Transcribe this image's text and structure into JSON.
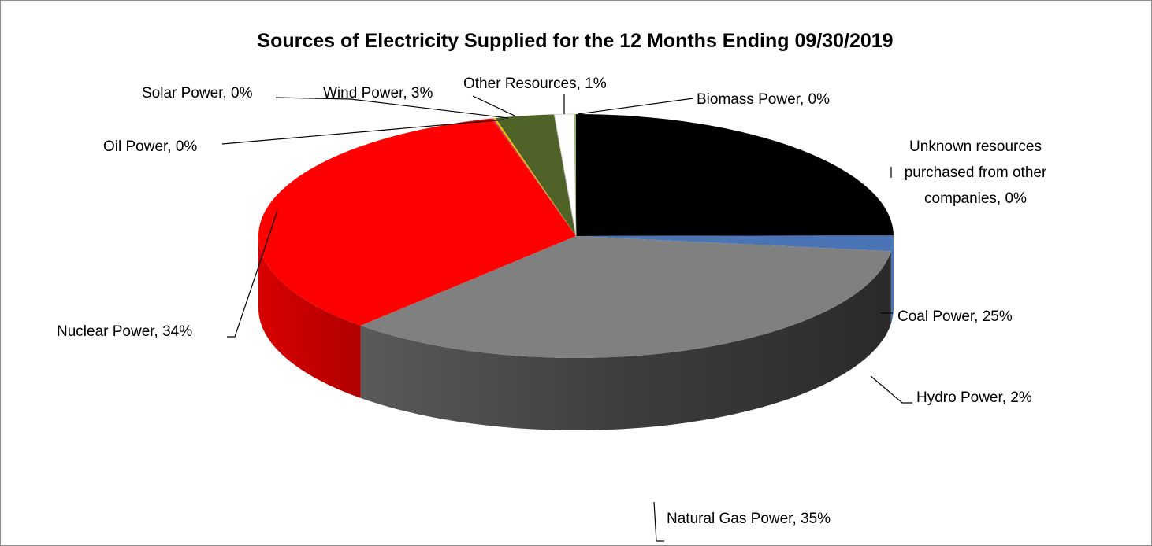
{
  "chart_data": {
    "type": "pie",
    "title": "Sources of Electricity Supplied for the 12 Months Ending 09/30/2019",
    "slices": [
      {
        "name": "Coal Power",
        "value": 25,
        "label": "Coal Power, 25%",
        "color": "#000000"
      },
      {
        "name": "Unknown resources purchased from other companies",
        "value": 0,
        "label_lines": [
          "Unknown resources",
          "purchased from other",
          "companies, 0%"
        ],
        "color": "#3a5f9a"
      },
      {
        "name": "Hydro Power",
        "value": 2,
        "label": "Hydro Power, 2%",
        "color": "#4a74b5"
      },
      {
        "name": "Natural Gas Power",
        "value": 35,
        "label": "Natural Gas Power, 35%",
        "color": "#808080"
      },
      {
        "name": "Nuclear Power",
        "value": 34,
        "label": "Nuclear Power, 34%",
        "color": "#ff0000"
      },
      {
        "name": "Oil Power",
        "value": 0,
        "label": "Oil Power, 0%",
        "color": "#c0504d"
      },
      {
        "name": "Solar Power",
        "value": 0,
        "label": "Solar Power, 0%",
        "color": "#f2c200"
      },
      {
        "name": "Wind Power",
        "value": 3,
        "label": "Wind Power, 3%",
        "color": "#4f6228"
      },
      {
        "name": "Other Resources",
        "value": 1,
        "label": "Other Resources, 1%",
        "color": "#ffffff"
      },
      {
        "name": "Biomass Power",
        "value": 0,
        "label": "Biomass Power, 0%",
        "color": "#9bbb59"
      }
    ]
  }
}
